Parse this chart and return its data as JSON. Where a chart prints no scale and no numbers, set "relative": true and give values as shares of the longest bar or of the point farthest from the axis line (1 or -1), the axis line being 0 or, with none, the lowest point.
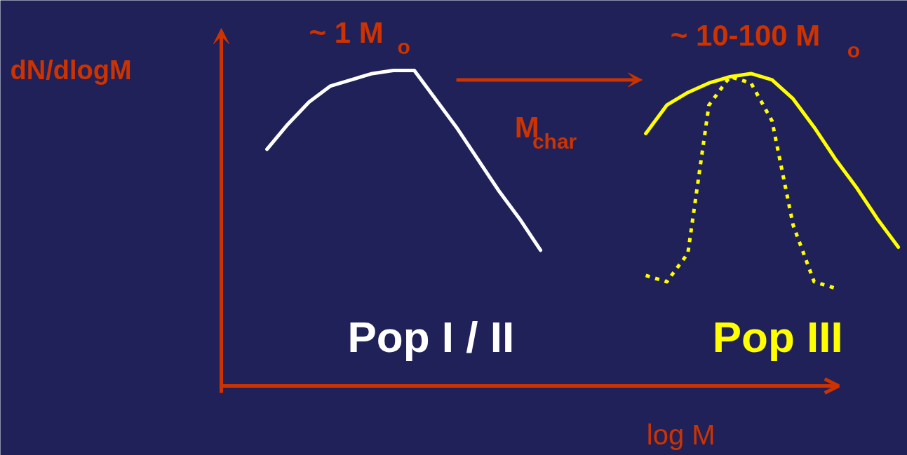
{
  "chart_data": {
    "type": "line",
    "relative": true,
    "xlabel": "log M",
    "ylabel": "dN/dlogM",
    "categories": [
      null,
      null,
      null,
      null,
      null,
      null,
      null,
      null,
      null,
      null,
      null,
      null,
      null,
      null,
      null,
      null,
      null,
      null,
      null,
      null,
      null,
      null,
      null,
      null,
      null,
      null,
      null,
      null,
      null,
      null,
      null
    ],
    "annotations": [
      "~ 1 M$_{o}$",
      "~ 10-100 M$_{o}$",
      "M$_{char}$"
    ],
    "series": [
      {
        "name": "Pop I / II",
        "color": "#ffffff",
        "line_style": "solid",
        "values": [
          0.75,
          0.83,
          0.9,
          0.95,
          0.97,
          0.99,
          1.0,
          1.0,
          0.91,
          0.82,
          0.72,
          0.62,
          0.53,
          0.43,
          null,
          null,
          null,
          null,
          null,
          null,
          null,
          null,
          null,
          null,
          null,
          null,
          null,
          null,
          null,
          null,
          null
        ]
      },
      {
        "name": "Pop III",
        "color": "#ffff00",
        "line_style": "solid",
        "values": [
          null,
          null,
          null,
          null,
          null,
          null,
          null,
          null,
          null,
          null,
          null,
          null,
          null,
          null,
          null,
          null,
          null,
          null,
          0.8,
          0.89,
          0.93,
          0.96,
          0.98,
          0.99,
          0.97,
          0.91,
          0.82,
          0.72,
          0.63,
          0.53,
          0.44
        ]
      },
      {
        "color": "#ffff00",
        "line_style": "dotted",
        "values": [
          null,
          null,
          null,
          null,
          null,
          null,
          null,
          null,
          null,
          null,
          null,
          null,
          null,
          null,
          null,
          null,
          null,
          null,
          0.35,
          0.33,
          0.42,
          0.89,
          0.98,
          0.96,
          0.84,
          0.51,
          0.33,
          0.31,
          null,
          null,
          null
        ]
      }
    ]
  }
}
